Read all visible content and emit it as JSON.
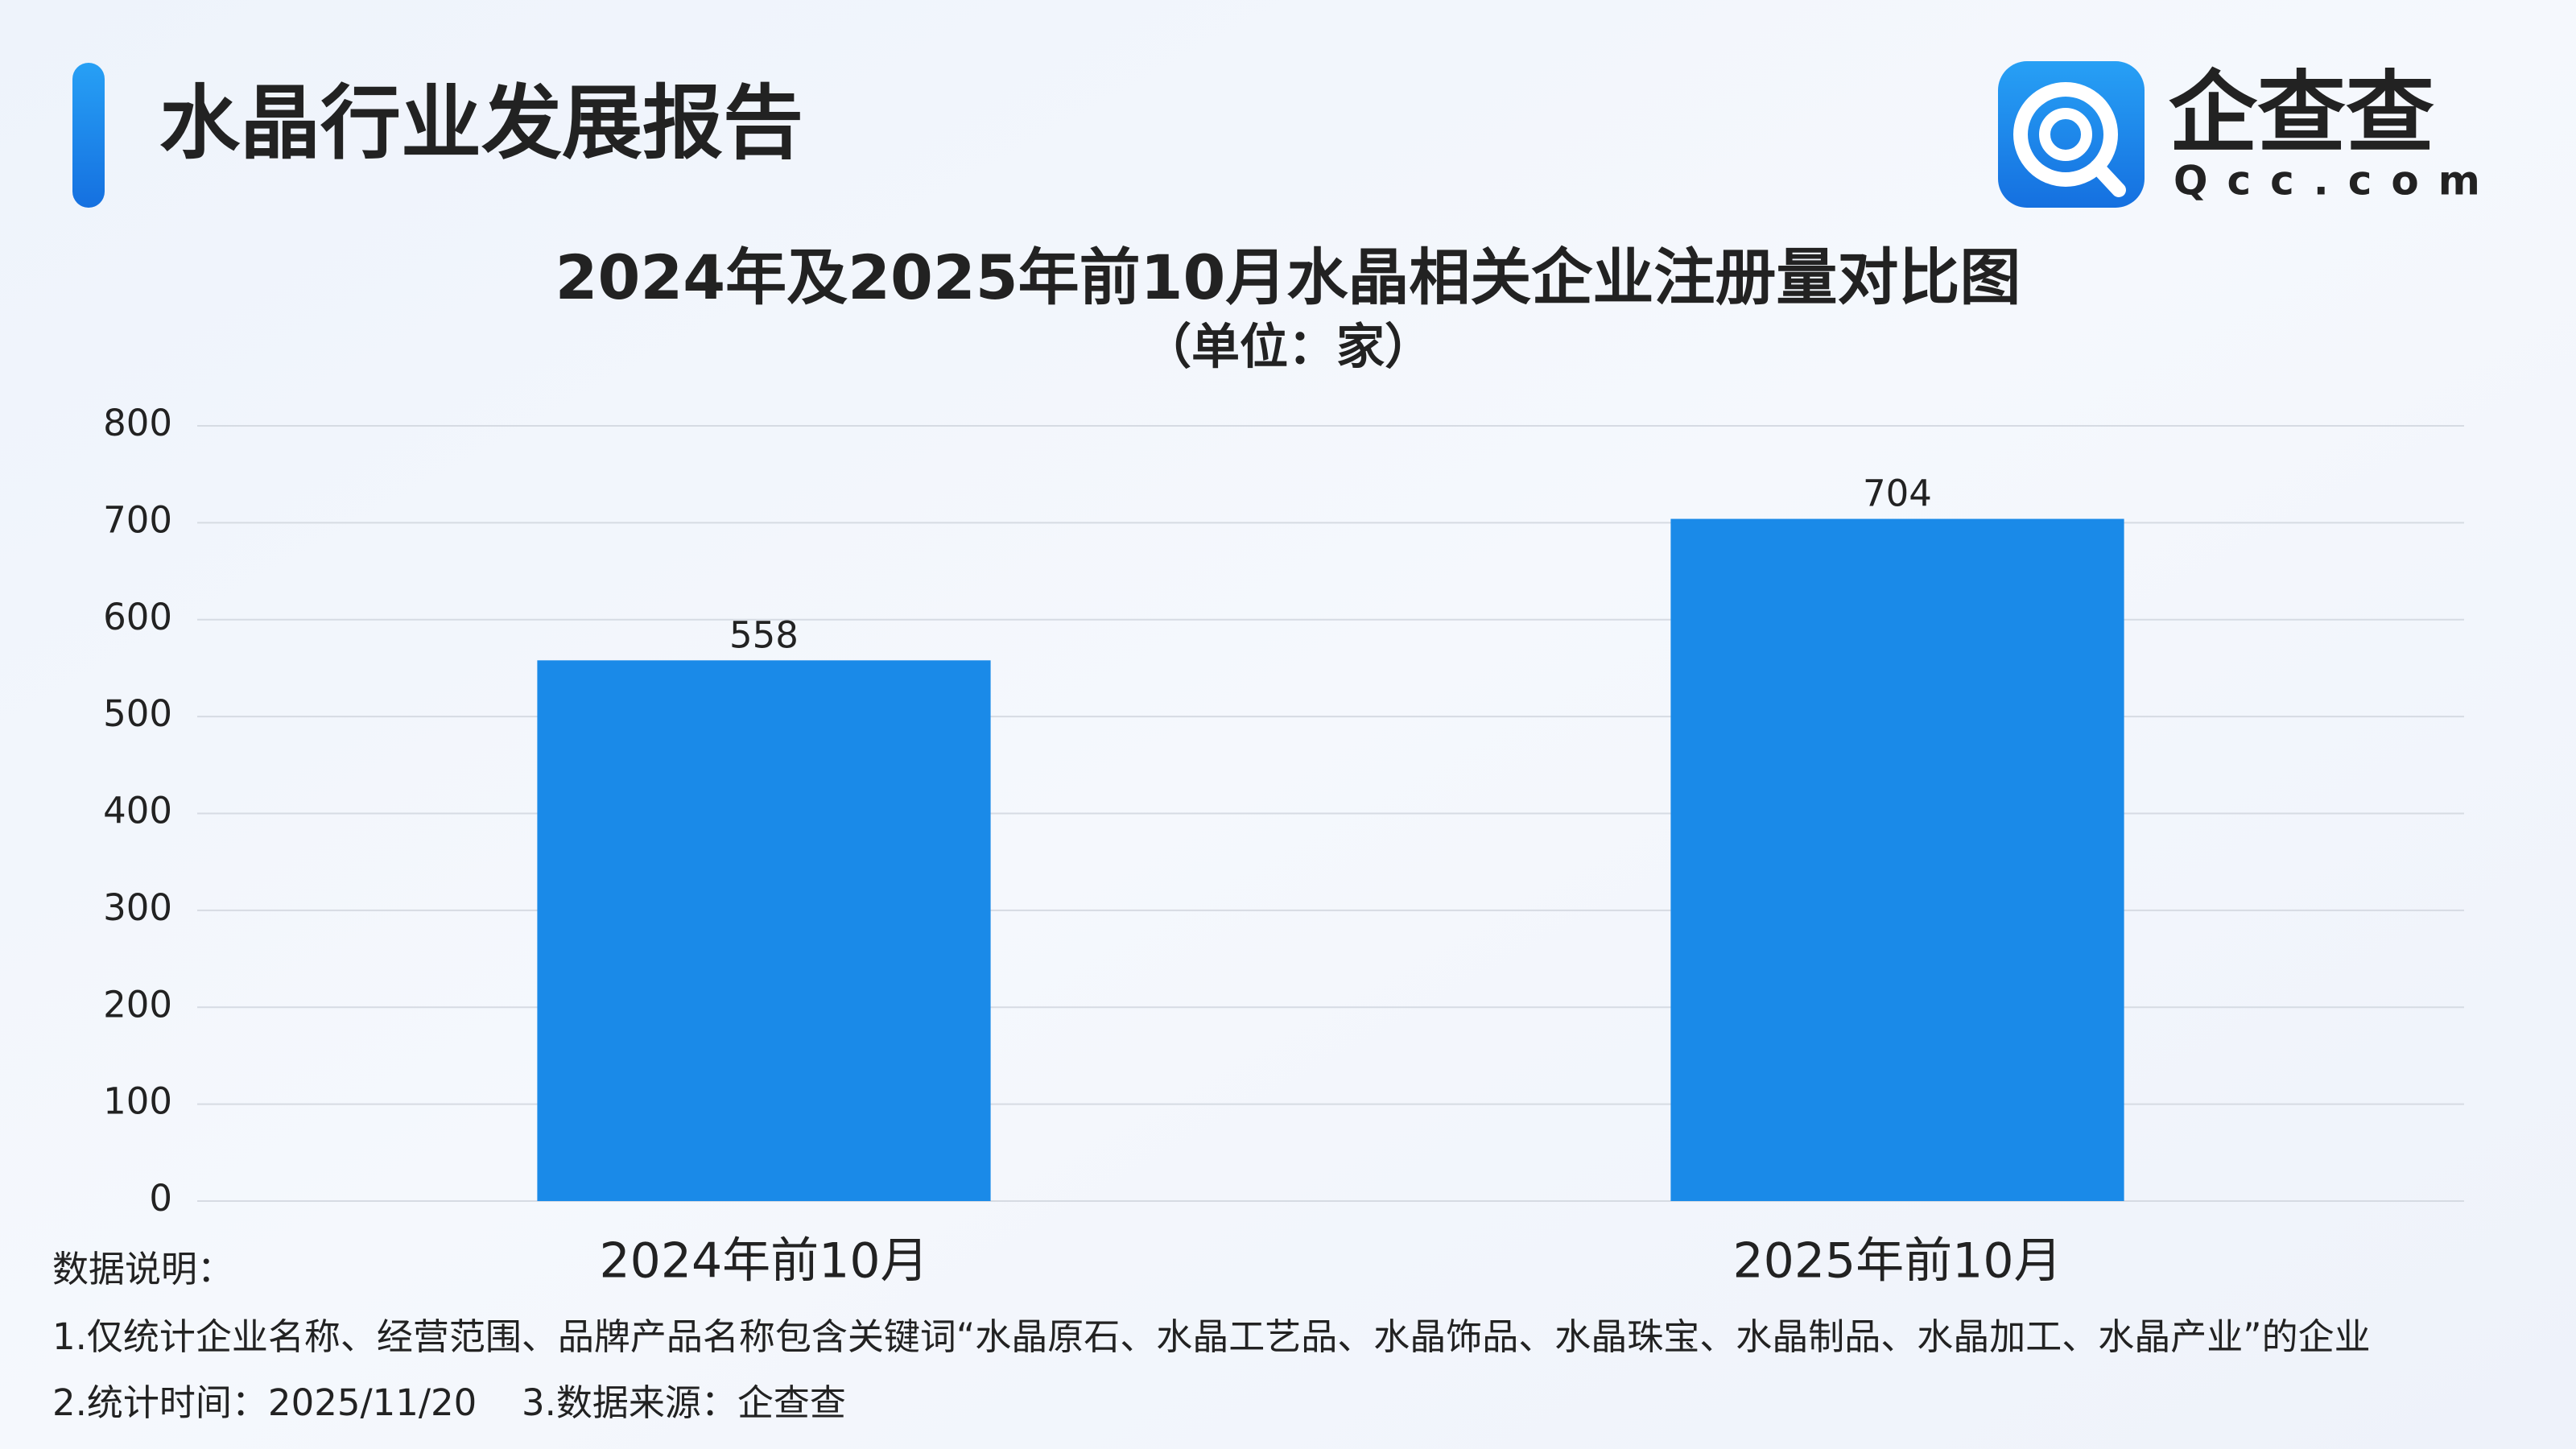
{
  "header": {
    "title": "水晶行业发展报告"
  },
  "logo": {
    "name": "企查查",
    "domain": "Qcc.com"
  },
  "chart_data": {
    "type": "bar",
    "title": "2024年及2025年前10月水晶相关企业注册量对比图",
    "subtitle": "（单位：家）",
    "categories": [
      "2024年前10月",
      "2025年前10月"
    ],
    "values": [
      558,
      704
    ],
    "color": "#1a8ae8",
    "ylim": [
      0,
      800
    ],
    "yticks": [
      0,
      100,
      200,
      300,
      400,
      500,
      600,
      700,
      800
    ],
    "grid": true
  },
  "notes": {
    "heading": "数据说明：",
    "lines": [
      "1.仅统计企业名称、经营范围、品牌产品名称包含关键词“水晶原石、水晶工艺品、水晶饰品、水晶珠宝、水晶制品、水晶加工、水晶产业”的企业",
      "2.统计时间：2025/11/20",
      "3.数据来源：企查查"
    ]
  }
}
